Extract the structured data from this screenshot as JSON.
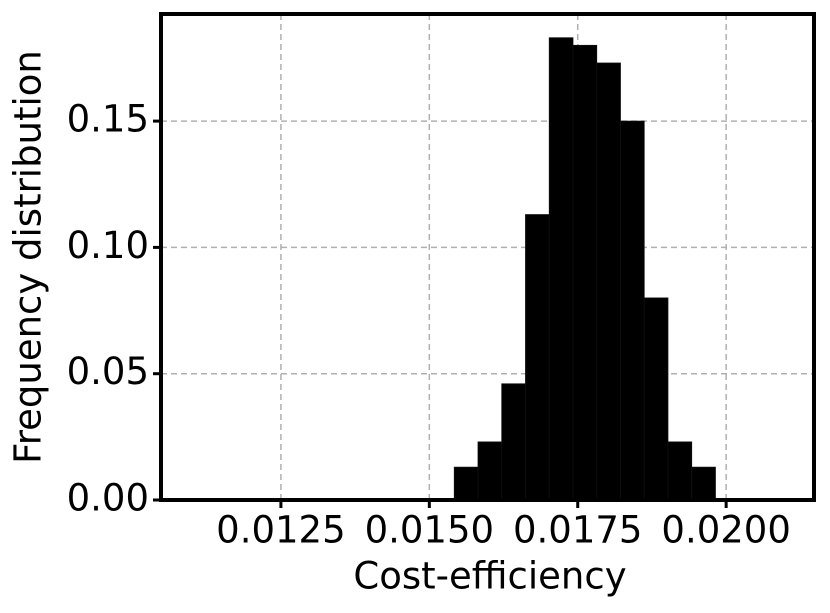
{
  "chart_data": {
    "type": "histogram",
    "xlabel": "Cost-efficiency",
    "ylabel": "Frequency distribution",
    "bins": [
      0.01542,
      0.01582,
      0.01622,
      0.01662,
      0.01702,
      0.01742,
      0.01782,
      0.01822,
      0.01862,
      0.01902,
      0.01942,
      0.01982
    ],
    "values": [
      0.013,
      0.023,
      0.046,
      0.113,
      0.183,
      0.18,
      0.173,
      0.15,
      0.08,
      0.023,
      0.013
    ],
    "color": "#000000",
    "xlim": [
      0.01048,
      0.02148
    ],
    "xticks": [
      0.0125,
      {
        "value": 0.015,
        "label": "0.0150"
      },
      0.0175,
      {
        "value": 0.02,
        "label": "0.0200"
      }
    ],
    "ylim": [
      0,
      0.1924
    ],
    "yticks": [
      {
        "value": 0,
        "label": "0.00"
      },
      {
        "value": 0.05,
        "label": "0.05"
      },
      {
        "value": 0.1,
        "label": "0.10"
      },
      {
        "value": 0.15,
        "label": "0.15"
      }
    ],
    "grid": true
  }
}
